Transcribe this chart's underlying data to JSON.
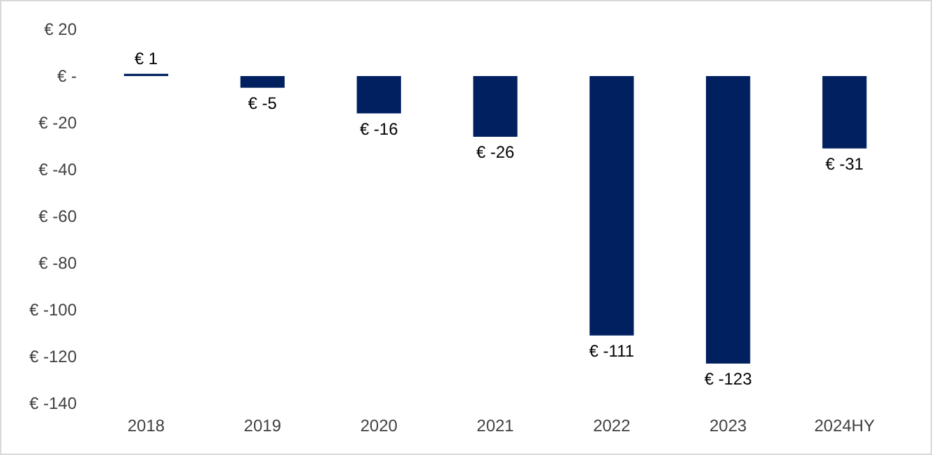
{
  "chart_data": {
    "type": "bar",
    "categories": [
      "2018",
      "2019",
      "2020",
      "2021",
      "2022",
      "2023",
      "2024HY"
    ],
    "series": [
      {
        "color": "#002060",
        "values": [
          1,
          -5,
          -16,
          -26,
          -111,
          -123,
          -31
        ],
        "value_labels": [
          "€ 1",
          "€ -5",
          "€ -16",
          "€ -26",
          "€ -111",
          "€ -123",
          "€ -31"
        ]
      }
    ],
    "ylim": [
      -140,
      20
    ],
    "yticks": [
      {
        "value": 20,
        "label": "€ 20"
      },
      {
        "value": 0,
        "label": "€ -"
      },
      {
        "value": -20,
        "label": "€ -20"
      },
      {
        "value": -40,
        "label": "€ -40"
      },
      {
        "value": -60,
        "label": "€ -60"
      },
      {
        "value": -80,
        "label": "€ -80"
      },
      {
        "value": -100,
        "label": "€ -100"
      },
      {
        "value": -120,
        "label": "€ -120"
      },
      {
        "value": -140,
        "label": "€ -140"
      }
    ],
    "grid": false
  }
}
